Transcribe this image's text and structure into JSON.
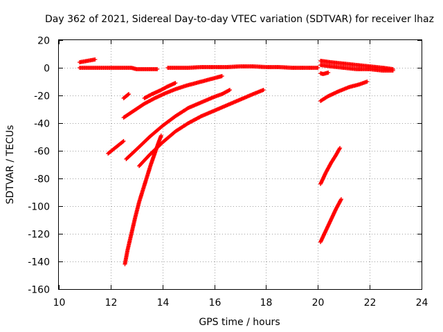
{
  "chart_data": {
    "type": "scatter",
    "title": "Day 362 of 2021, Sidereal Day-to-day VTEC variation (SDTVAR) for receiver lhaz",
    "xlabel": "GPS time / hours",
    "ylabel": "SDTVAR / TECUs",
    "xlim": [
      10,
      24
    ],
    "ylim": [
      -160,
      20
    ],
    "xticks": [
      10,
      12,
      14,
      16,
      18,
      20,
      22,
      24
    ],
    "yticks": [
      20,
      0,
      -20,
      -40,
      -60,
      -80,
      -100,
      -120,
      -140,
      -160
    ],
    "grid": true,
    "marker": "+",
    "color": "#ff0000",
    "series": [
      {
        "x": [
          10.8,
          11.0,
          11.2,
          11.4,
          11.6,
          11.8,
          12.0,
          12.2,
          12.4,
          12.6,
          12.8,
          13.0,
          13.2,
          13.4,
          13.6,
          13.8
        ],
        "y": [
          0,
          0,
          0,
          0,
          0,
          0,
          0,
          0,
          0,
          0,
          0,
          -1,
          -1,
          -1,
          -1,
          -1
        ]
      },
      {
        "x": [
          10.8,
          10.95,
          11.1,
          11.25,
          11.4
        ],
        "y": [
          4,
          4.5,
          5,
          5.5,
          6
        ]
      },
      {
        "x": [
          14.2,
          14.6,
          15.0,
          15.5,
          16.0,
          16.5,
          17.0,
          17.5,
          18.0,
          18.5,
          19.0,
          19.5,
          20.0
        ],
        "y": [
          0,
          0,
          0,
          0.5,
          0.5,
          0.5,
          1,
          1,
          0.5,
          0.5,
          0,
          0,
          0
        ]
      },
      {
        "x": [
          20.1,
          20.5,
          21.0,
          21.5,
          22.0,
          22.5,
          22.9
        ],
        "y": [
          5,
          4,
          3,
          2,
          1,
          0,
          -1
        ]
      },
      {
        "x": [
          20.1,
          20.5,
          21.0,
          21.5,
          22.0,
          22.5,
          22.9
        ],
        "y": [
          2,
          1,
          0,
          -1,
          -1,
          -2,
          -2
        ]
      },
      {
        "x": [
          20.1,
          20.2,
          20.3,
          20.4
        ],
        "y": [
          -4,
          -4.5,
          -4,
          -3.5
        ]
      },
      {
        "x": [
          12.5,
          12.6,
          12.7
        ],
        "y": [
          -22,
          -20.5,
          -19
        ]
      },
      {
        "x": [
          12.5,
          12.9,
          13.3,
          13.7,
          14.1,
          14.5,
          14.9,
          15.3,
          15.7,
          16.1,
          16.3
        ],
        "y": [
          -36,
          -31,
          -26,
          -22,
          -18.5,
          -15.5,
          -13,
          -11,
          -9,
          -7,
          -6
        ]
      },
      {
        "x": [
          13.3,
          13.6,
          13.9,
          14.2,
          14.5
        ],
        "y": [
          -22,
          -19,
          -16.5,
          -13.5,
          -11
        ]
      },
      {
        "x": [
          11.9,
          12.1,
          12.3,
          12.5
        ],
        "y": [
          -62,
          -59,
          -56,
          -53
        ]
      },
      {
        "x": [
          12.6,
          13.0,
          13.5,
          14.0,
          14.5,
          15.0,
          15.5,
          16.0,
          16.3,
          16.6
        ],
        "y": [
          -66,
          -59,
          -50,
          -42,
          -35,
          -29,
          -25,
          -21,
          -19,
          -16
        ]
      },
      {
        "x": [
          13.1,
          13.5,
          14.0,
          14.5,
          15.0,
          15.5,
          16.0,
          16.5,
          17.0,
          17.5,
          17.9
        ],
        "y": [
          -71,
          -63,
          -54,
          -46,
          -40,
          -35,
          -31,
          -27,
          -23,
          -19,
          -16
        ]
      },
      {
        "x": [
          12.55,
          12.65,
          12.8,
          12.95,
          13.1,
          13.25,
          13.4,
          13.55,
          13.7,
          13.85,
          13.95
        ],
        "y": [
          -142,
          -132,
          -120,
          -108,
          -97,
          -88,
          -79,
          -70,
          -62,
          -54,
          -49
        ]
      },
      {
        "x": [
          20.1,
          20.4,
          20.8,
          21.2,
          21.6,
          21.9
        ],
        "y": [
          -24,
          -20.5,
          -17,
          -14,
          -12,
          -10
        ]
      },
      {
        "x": [
          20.1,
          20.3,
          20.5,
          20.7,
          20.85
        ],
        "y": [
          -84,
          -76,
          -69,
          -63,
          -58
        ]
      },
      {
        "x": [
          20.1,
          20.3,
          20.5,
          20.7,
          20.9
        ],
        "y": [
          -126,
          -118,
          -110,
          -102,
          -95
        ]
      }
    ]
  }
}
